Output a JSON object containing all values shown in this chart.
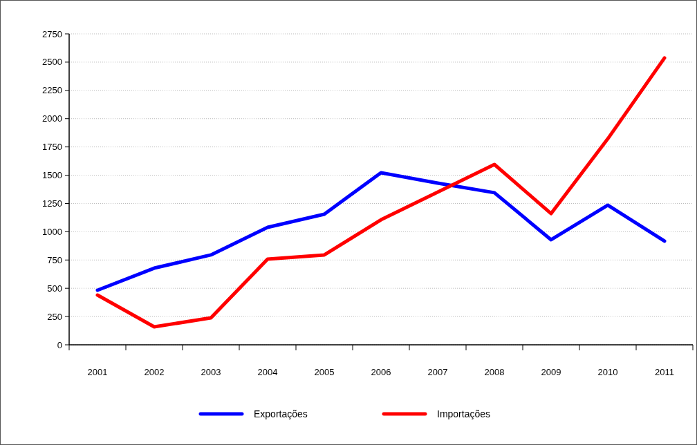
{
  "chart_data": {
    "type": "line",
    "categories": [
      "2001",
      "2002",
      "2003",
      "2004",
      "2005",
      "2006",
      "2007",
      "2008",
      "2009",
      "2010",
      "2011"
    ],
    "series": [
      {
        "name": "Exportações",
        "color": "#0000ff",
        "values": [
          483,
          678,
          795,
          1039,
          1155,
          1522,
          1430,
          1345,
          929,
          1235,
          917
        ]
      },
      {
        "name": "Importações",
        "color": "#ff0000",
        "values": [
          440,
          159,
          238,
          758,
          795,
          1106,
          1350,
          1595,
          1161,
          1822,
          2537
        ]
      }
    ],
    "ylim": [
      0,
      2750
    ],
    "yticks": [
      0,
      250,
      500,
      750,
      1000,
      1250,
      1500,
      1750,
      2000,
      2250,
      2500,
      2750
    ],
    "grid": "y",
    "legend": "bottom",
    "marker": "none",
    "line_style": "solid"
  }
}
